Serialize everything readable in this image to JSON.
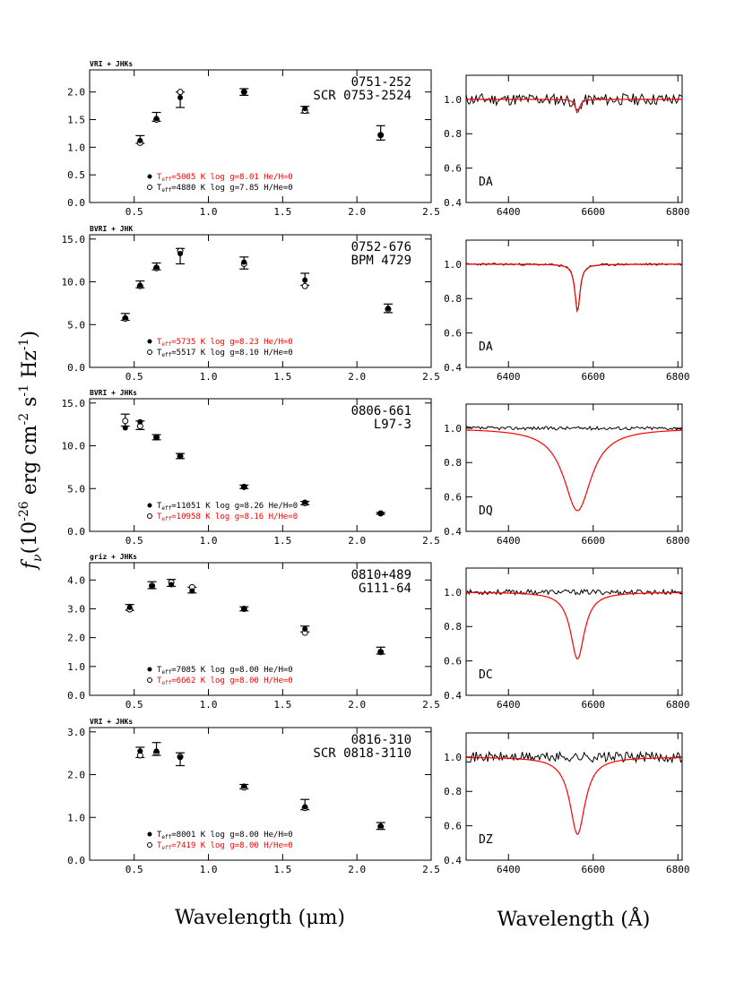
{
  "figure": {
    "y_axis_label": "f",
    "y_axis_sub": "ν",
    "y_axis_units": "(10",
    "y_axis_units_exp": "-26",
    "y_axis_units_2": " erg cm",
    "y_axis_units_exp2": "-2",
    "y_axis_units_3": " s",
    "y_axis_units_exp3": "-1",
    "y_axis_units_4": " Hz",
    "y_axis_units_exp4": "-1",
    "y_axis_units_5": ")",
    "x_label_left": "Wavelength (μm)",
    "x_label_right": "Wavelength (Å)"
  },
  "colors": {
    "model": "#ff0000",
    "data": "#000000"
  },
  "chart_data": [
    {
      "type": "scatter",
      "panel": 1,
      "title": "VRI + JHKs",
      "name1": "0751-252",
      "name2": "SCR 0753-2524",
      "xlim": [
        0.2,
        2.5
      ],
      "ylim": [
        0.0,
        2.4
      ],
      "yticks": [
        0.0,
        0.5,
        1.0,
        1.5,
        2.0
      ],
      "ytick_labels": [
        "0.0",
        "0.5",
        "1.0",
        "1.5",
        "2.0"
      ],
      "xticks": [
        0.5,
        1.0,
        1.5,
        2.0,
        2.5
      ],
      "xtick_labels": [
        "0.5",
        "1.0",
        "1.5",
        "2.0",
        "2.5"
      ],
      "observed": [
        {
          "x": 0.54,
          "y": 1.14,
          "err": 0.07
        },
        {
          "x": 0.65,
          "y": 1.55,
          "err": 0.08
        },
        {
          "x": 0.81,
          "y": 1.86,
          "err": 0.14
        },
        {
          "x": 1.24,
          "y": 2.0,
          "err": 0.06
        },
        {
          "x": 1.65,
          "y": 1.68,
          "err": 0.06
        },
        {
          "x": 2.16,
          "y": 1.26,
          "err": 0.13
        }
      ],
      "model_filled": [
        1.12,
        1.52,
        1.9,
        2.0,
        1.7,
        1.22
      ],
      "model_open": [
        1.08,
        1.5,
        2.0,
        2.0,
        1.66,
        1.22
      ],
      "legend": [
        {
          "marker": "filled",
          "teff_sub": "eff",
          "teff_value": "=5085 K",
          "logg": "log g=8.01",
          "comp": "He/H=0",
          "color": "#ff0000"
        },
        {
          "marker": "open",
          "teff_sub": "eff",
          "teff_value": "=4880 K",
          "logg": "log g=7.85",
          "comp": "H/He=0",
          "color": "#000000"
        }
      ]
    },
    {
      "type": "scatter",
      "panel": 2,
      "title": "BVRI + JHK",
      "name1": "0752-676",
      "name2": "BPM 4729",
      "xlim": [
        0.2,
        2.5
      ],
      "ylim": [
        0.0,
        15.5
      ],
      "yticks": [
        0.0,
        5.0,
        10.0,
        15.0
      ],
      "ytick_labels": [
        "0.0",
        "5.0",
        "10.0",
        "15.0"
      ],
      "xticks": [
        0.5,
        1.0,
        1.5,
        2.0,
        2.5
      ],
      "xtick_labels": [
        "0.5",
        "1.0",
        "1.5",
        "2.0",
        "2.5"
      ],
      "observed": [
        {
          "x": 0.44,
          "y": 5.9,
          "err": 0.4
        },
        {
          "x": 0.54,
          "y": 9.7,
          "err": 0.4
        },
        {
          "x": 0.65,
          "y": 11.8,
          "err": 0.4
        },
        {
          "x": 0.81,
          "y": 13.0,
          "err": 0.9
        },
        {
          "x": 1.24,
          "y": 12.2,
          "err": 0.7
        },
        {
          "x": 1.65,
          "y": 10.3,
          "err": 0.7
        },
        {
          "x": 2.21,
          "y": 6.9,
          "err": 0.5
        }
      ],
      "model_filled": [
        5.8,
        9.6,
        11.7,
        13.3,
        12.3,
        10.2,
        6.9
      ],
      "model_open": [
        5.7,
        9.5,
        11.6,
        13.6,
        12.1,
        9.5,
        6.8
      ],
      "legend": [
        {
          "marker": "filled",
          "teff_sub": "eff",
          "teff_value": "=5735 K",
          "logg": "log g=8.23",
          "comp": "He/H=0",
          "color": "#ff0000"
        },
        {
          "marker": "open",
          "teff_sub": "eff",
          "teff_value": "=5517 K",
          "logg": "log g=8.10",
          "comp": "H/He=0",
          "color": "#000000"
        }
      ]
    },
    {
      "type": "scatter",
      "panel": 3,
      "title": "BVRI + JHKs",
      "name1": "0806-661",
      "name2": "L97-3",
      "xlim": [
        0.2,
        2.5
      ],
      "ylim": [
        0.0,
        15.5
      ],
      "yticks": [
        0.0,
        5.0,
        10.0,
        15.0
      ],
      "ytick_labels": [
        "0.0",
        "5.0",
        "10.0",
        "15.0"
      ],
      "xticks": [
        0.5,
        1.0,
        1.5,
        2.0,
        2.5
      ],
      "xtick_labels": [
        "0.5",
        "1.0",
        "1.5",
        "2.0",
        "2.5"
      ],
      "observed": [
        {
          "x": 0.44,
          "y": 13.0,
          "err": 0.7
        },
        {
          "x": 0.54,
          "y": 12.4,
          "err": 0.5
        },
        {
          "x": 0.65,
          "y": 11.0,
          "err": 0.3
        },
        {
          "x": 0.81,
          "y": 8.8,
          "err": 0.3
        },
        {
          "x": 1.24,
          "y": 5.2,
          "err": 0.2
        },
        {
          "x": 1.65,
          "y": 3.3,
          "err": 0.2
        },
        {
          "x": 2.16,
          "y": 2.1,
          "err": 0.1
        }
      ],
      "model_filled": [
        12.1,
        12.8,
        11.0,
        8.8,
        5.2,
        3.4,
        2.1
      ],
      "model_open": [
        12.9,
        12.3,
        11.0,
        8.8,
        5.2,
        3.3,
        2.1
      ],
      "legend": [
        {
          "marker": "filled",
          "teff_sub": "eff",
          "teff_value": "=11051 K",
          "logg": "log g=8.26",
          "comp": "He/H=0",
          "color": "#000000"
        },
        {
          "marker": "open",
          "teff_sub": "eff",
          "teff_value": "=10958 K",
          "logg": "log g=8.16",
          "comp": "H/He=0",
          "color": "#ff0000"
        }
      ]
    },
    {
      "type": "scatter",
      "panel": 4,
      "title": "griz + JHKs",
      "name1": "0810+489",
      "name2": "G111-64",
      "xlim": [
        0.2,
        2.5
      ],
      "ylim": [
        0.0,
        4.6
      ],
      "yticks": [
        0.0,
        1.0,
        2.0,
        3.0,
        4.0
      ],
      "ytick_labels": [
        "0.0",
        "1.0",
        "2.0",
        "3.0",
        "4.0"
      ],
      "xticks": [
        0.5,
        1.0,
        1.5,
        2.0,
        2.5
      ],
      "xtick_labels": [
        "0.5",
        "1.0",
        "1.5",
        "2.0",
        "2.5"
      ],
      "observed": [
        {
          "x": 0.47,
          "y": 3.05,
          "err": 0.1
        },
        {
          "x": 0.62,
          "y": 3.82,
          "err": 0.12
        },
        {
          "x": 0.75,
          "y": 3.9,
          "err": 0.12
        },
        {
          "x": 0.89,
          "y": 3.65,
          "err": 0.1
        },
        {
          "x": 1.24,
          "y": 3.0,
          "err": 0.07
        },
        {
          "x": 1.65,
          "y": 2.3,
          "err": 0.1
        },
        {
          "x": 2.16,
          "y": 1.55,
          "err": 0.12
        }
      ],
      "model_filled": [
        3.05,
        3.78,
        3.84,
        3.62,
        3.0,
        2.3,
        1.52
      ],
      "model_open": [
        2.98,
        3.8,
        3.92,
        3.75,
        3.0,
        2.17,
        1.5
      ],
      "legend": [
        {
          "marker": "filled",
          "teff_sub": "eff",
          "teff_value": "=7085 K",
          "logg": "log g=8.00",
          "comp": "He/H=0",
          "color": "#000000"
        },
        {
          "marker": "open",
          "teff_sub": "eff",
          "teff_value": "=6662 K",
          "logg": "log g=8.00",
          "comp": "H/He=0",
          "color": "#ff0000"
        }
      ]
    },
    {
      "type": "scatter",
      "panel": 5,
      "title": "VRI + JHKs",
      "name1": "0816-310",
      "name2": "SCR 0818-3110",
      "xlim": [
        0.2,
        2.5
      ],
      "ylim": [
        0.0,
        3.1
      ],
      "yticks": [
        0.0,
        1.0,
        2.0,
        3.0
      ],
      "ytick_labels": [
        "0.0",
        "1.0",
        "2.0",
        "3.0"
      ],
      "xticks": [
        0.5,
        1.0,
        1.5,
        2.0,
        2.5
      ],
      "xtick_labels": [
        "0.5",
        "1.0",
        "1.5",
        "2.0",
        "2.5"
      ],
      "observed": [
        {
          "x": 0.54,
          "y": 2.52,
          "err": 0.12
        },
        {
          "x": 0.65,
          "y": 2.6,
          "err": 0.15
        },
        {
          "x": 0.81,
          "y": 2.36,
          "err": 0.15
        },
        {
          "x": 1.24,
          "y": 1.72,
          "err": 0.05
        },
        {
          "x": 1.65,
          "y": 1.3,
          "err": 0.12
        },
        {
          "x": 2.16,
          "y": 0.8,
          "err": 0.08
        }
      ],
      "model_filled": [
        2.55,
        2.55,
        2.4,
        1.73,
        1.25,
        0.8
      ],
      "model_open": [
        2.45,
        2.52,
        2.42,
        1.7,
        1.22,
        0.78
      ],
      "legend": [
        {
          "marker": "filled",
          "teff_sub": "eff",
          "teff_value": "=8001 K",
          "logg": "log g=8.00",
          "comp": "He/H=0",
          "color": "#000000"
        },
        {
          "marker": "open",
          "teff_sub": "eff",
          "teff_value": "=7419 K",
          "logg": "log g=8.00",
          "comp": "H/He=0",
          "color": "#ff0000"
        }
      ]
    },
    {
      "type": "line",
      "panel": 6,
      "label": "DA",
      "xlim": [
        6300,
        6810
      ],
      "ylim": [
        0.4,
        1.14
      ],
      "yticks": [
        0.4,
        0.6,
        0.8,
        1.0
      ],
      "ytick_labels": [
        "0.4",
        "0.6",
        "0.8",
        "1.0"
      ],
      "xticks": [
        6400,
        6600,
        6800
      ],
      "xtick_labels": [
        "6400",
        "6600",
        "6800"
      ],
      "line_center": 6563,
      "model_depth": 0.08,
      "model_width": 6,
      "obs_depth": 0.08,
      "noise": 0.035,
      "seed": 11
    },
    {
      "type": "line",
      "panel": 7,
      "label": "DA",
      "xlim": [
        6300,
        6810
      ],
      "ylim": [
        0.4,
        1.14
      ],
      "yticks": [
        0.4,
        0.6,
        0.8,
        1.0
      ],
      "ytick_labels": [
        "0.4",
        "0.6",
        "0.8",
        "1.0"
      ],
      "xticks": [
        6400,
        6600,
        6800
      ],
      "xtick_labels": [
        "6400",
        "6600",
        "6800"
      ],
      "line_center": 6563,
      "model_depth": 0.28,
      "model_width": 7,
      "obs_depth": 0.28,
      "noise": 0.006,
      "seed": 23
    },
    {
      "type": "line",
      "panel": 8,
      "label": "DQ",
      "xlim": [
        6300,
        6810
      ],
      "ylim": [
        0.4,
        1.14
      ],
      "yticks": [
        0.4,
        0.6,
        0.8,
        1.0
      ],
      "ytick_labels": [
        "0.4",
        "0.6",
        "0.8",
        "1.0"
      ],
      "xticks": [
        6400,
        6600,
        6800
      ],
      "xtick_labels": [
        "6400",
        "6600",
        "6800"
      ],
      "line_center": 6563,
      "model_depth": 0.48,
      "model_width": 40,
      "obs_depth": 0.0,
      "noise": 0.01,
      "seed": 37
    },
    {
      "type": "line",
      "panel": 9,
      "label": "DC",
      "xlim": [
        6300,
        6810
      ],
      "ylim": [
        0.4,
        1.14
      ],
      "yticks": [
        0.4,
        0.6,
        0.8,
        1.0
      ],
      "ytick_labels": [
        "0.4",
        "0.6",
        "0.8",
        "1.0"
      ],
      "xticks": [
        6400,
        6600,
        6800
      ],
      "xtick_labels": [
        "6400",
        "6600",
        "6800"
      ],
      "line_center": 6563,
      "model_depth": 0.39,
      "model_width": 20,
      "obs_depth": 0.0,
      "noise": 0.015,
      "seed": 53
    },
    {
      "type": "line",
      "panel": 10,
      "label": "DZ",
      "xlim": [
        6300,
        6810
      ],
      "ylim": [
        0.4,
        1.14
      ],
      "yticks": [
        0.4,
        0.6,
        0.8,
        1.0
      ],
      "ytick_labels": [
        "0.4",
        "0.6",
        "0.8",
        "1.0"
      ],
      "xticks": [
        6400,
        6600,
        6800
      ],
      "xtick_labels": [
        "6400",
        "6600",
        "6800"
      ],
      "line_center": 6563,
      "model_depth": 0.45,
      "model_width": 22,
      "obs_depth": 0.0,
      "noise": 0.03,
      "seed": 71
    }
  ]
}
